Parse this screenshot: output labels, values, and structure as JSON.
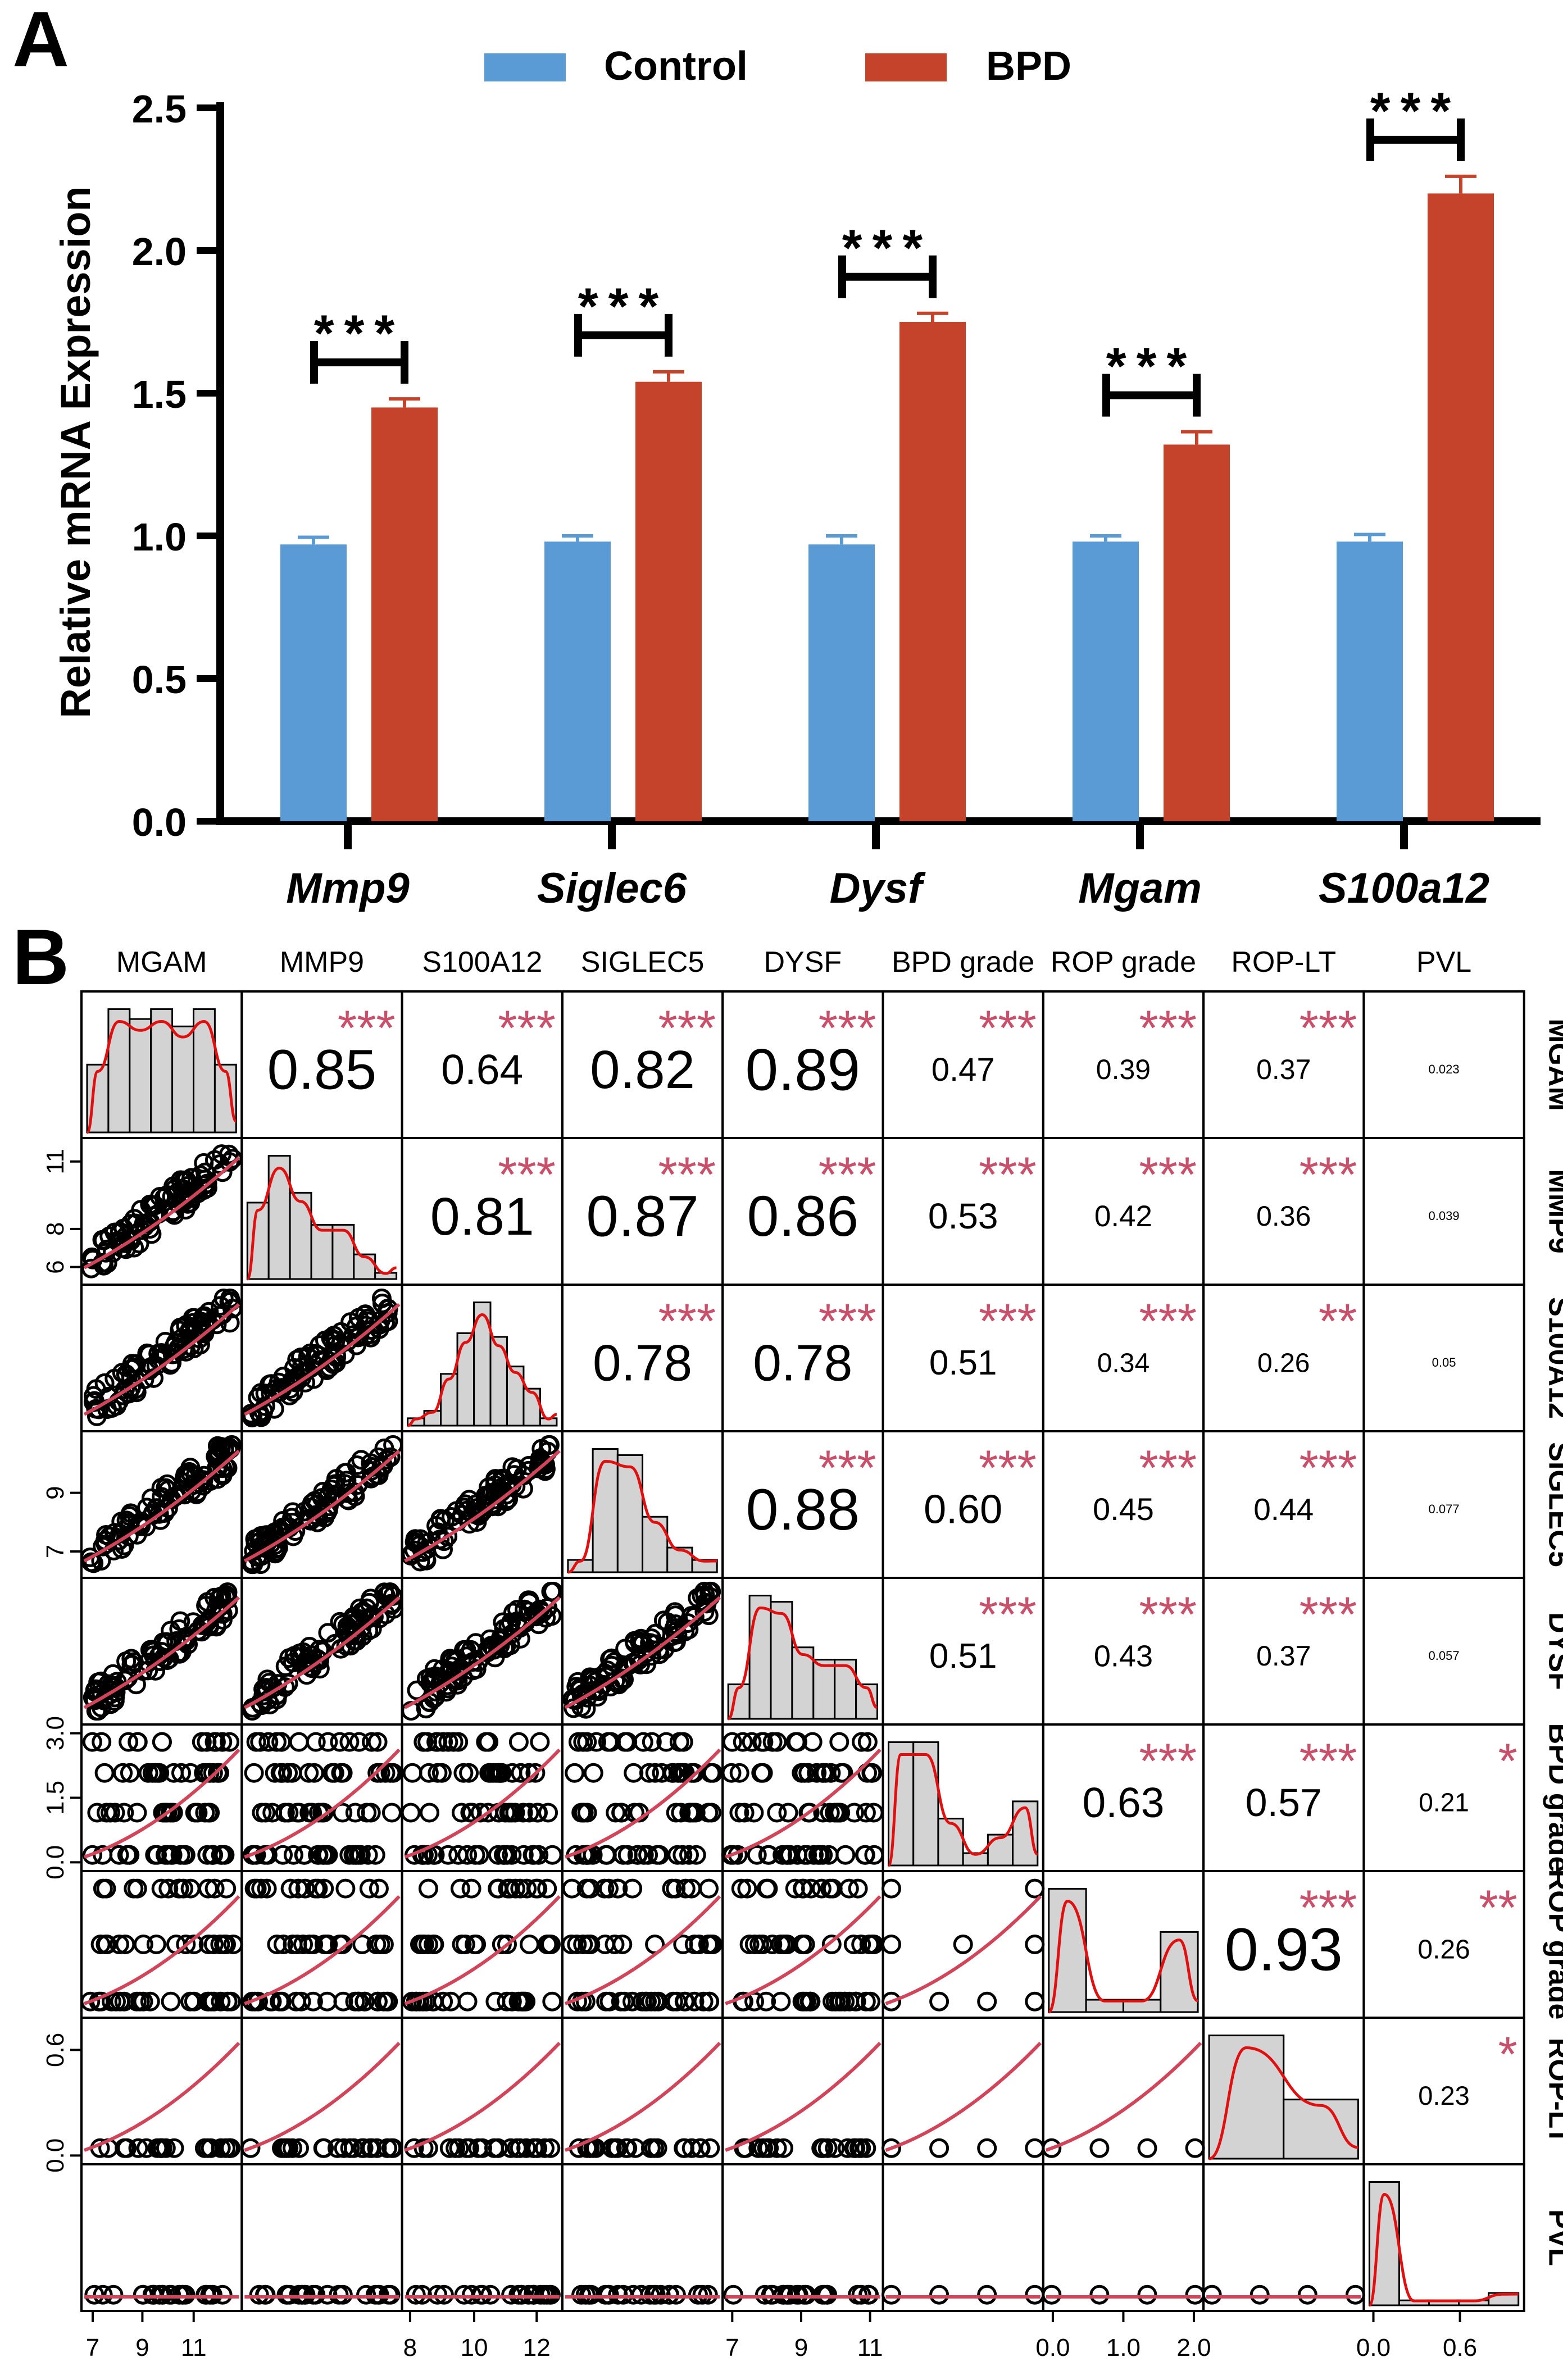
{
  "panel_a": {
    "label": "A",
    "chart_data": {
      "type": "bar",
      "title": "",
      "xlabel": "",
      "ylabel": "Relative mRNA Expression",
      "ylim": [
        0,
        2.5
      ],
      "yticks": [
        "0.0",
        "0.5",
        "1.0",
        "1.5",
        "2.0",
        "2.5"
      ],
      "categories": [
        "Mmp9",
        "Siglec6",
        "Dysf",
        "Mgam",
        "S100a12"
      ],
      "legend_position": "top-center",
      "series": [
        {
          "name": "Control",
          "color": "#5b9bd5",
          "values": [
            0.97,
            0.98,
            0.97,
            0.98,
            0.98
          ],
          "errors": [
            0.025,
            0.02,
            0.03,
            0.02,
            0.025
          ]
        },
        {
          "name": "BPD",
          "color": "#c5432b",
          "values": [
            1.45,
            1.54,
            1.75,
            1.32,
            2.2
          ],
          "errors": [
            0.03,
            0.035,
            0.03,
            0.045,
            0.06
          ]
        }
      ],
      "significance": [
        "***",
        "***",
        "***",
        "***",
        "***"
      ]
    }
  },
  "panel_b": {
    "label": "B",
    "chart_data": {
      "type": "scatter",
      "description": "correlation matrix",
      "variables": [
        "MGAM",
        "MMP9",
        "S100A12",
        "SIGLEC5",
        "DYSF",
        "BPD grade",
        "ROP grade",
        "ROP-LT",
        "PVL"
      ],
      "correlations": [
        {
          "row": 0,
          "col": 1,
          "r": "0.85",
          "stars": "***",
          "size": 1.0
        },
        {
          "row": 0,
          "col": 2,
          "r": "0.64",
          "stars": "***",
          "size": 0.75
        },
        {
          "row": 0,
          "col": 3,
          "r": "0.82",
          "stars": "***",
          "size": 0.96
        },
        {
          "row": 0,
          "col": 4,
          "r": "0.89",
          "stars": "***",
          "size": 1.05
        },
        {
          "row": 0,
          "col": 5,
          "r": "0.47",
          "stars": "***",
          "size": 0.58
        },
        {
          "row": 0,
          "col": 6,
          "r": "0.39",
          "stars": "***",
          "size": 0.5
        },
        {
          "row": 0,
          "col": 7,
          "r": "0.37",
          "stars": "***",
          "size": 0.5
        },
        {
          "row": 0,
          "col": 8,
          "r": "0.023",
          "stars": "",
          "size": 0.22
        },
        {
          "row": 1,
          "col": 2,
          "r": "0.81",
          "stars": "***",
          "size": 0.95
        },
        {
          "row": 1,
          "col": 3,
          "r": "0.87",
          "stars": "***",
          "size": 1.03
        },
        {
          "row": 1,
          "col": 4,
          "r": "0.86",
          "stars": "***",
          "size": 1.02
        },
        {
          "row": 1,
          "col": 5,
          "r": "0.53",
          "stars": "***",
          "size": 0.64
        },
        {
          "row": 1,
          "col": 6,
          "r": "0.42",
          "stars": "***",
          "size": 0.53
        },
        {
          "row": 1,
          "col": 7,
          "r": "0.36",
          "stars": "***",
          "size": 0.5
        },
        {
          "row": 1,
          "col": 8,
          "r": "0.039",
          "stars": "",
          "size": 0.22
        },
        {
          "row": 2,
          "col": 3,
          "r": "0.78",
          "stars": "***",
          "size": 0.91
        },
        {
          "row": 2,
          "col": 4,
          "r": "0.78",
          "stars": "***",
          "size": 0.91
        },
        {
          "row": 2,
          "col": 5,
          "r": "0.51",
          "stars": "***",
          "size": 0.62
        },
        {
          "row": 2,
          "col": 6,
          "r": "0.34",
          "stars": "***",
          "size": 0.48
        },
        {
          "row": 2,
          "col": 7,
          "r": "0.26",
          "stars": "**",
          "size": 0.48
        },
        {
          "row": 2,
          "col": 8,
          "r": "0.05",
          "stars": "",
          "size": 0.22
        },
        {
          "row": 3,
          "col": 4,
          "r": "0.88",
          "stars": "***",
          "size": 1.04
        },
        {
          "row": 3,
          "col": 5,
          "r": "0.60",
          "stars": "***",
          "size": 0.72
        },
        {
          "row": 3,
          "col": 6,
          "r": "0.45",
          "stars": "***",
          "size": 0.56
        },
        {
          "row": 3,
          "col": 7,
          "r": "0.44",
          "stars": "***",
          "size": 0.55
        },
        {
          "row": 3,
          "col": 8,
          "r": "0.077",
          "stars": "",
          "size": 0.22
        },
        {
          "row": 4,
          "col": 5,
          "r": "0.51",
          "stars": "***",
          "size": 0.62
        },
        {
          "row": 4,
          "col": 6,
          "r": "0.43",
          "stars": "***",
          "size": 0.54
        },
        {
          "row": 4,
          "col": 7,
          "r": "0.37",
          "stars": "***",
          "size": 0.5
        },
        {
          "row": 4,
          "col": 8,
          "r": "0.057",
          "stars": "",
          "size": 0.22
        },
        {
          "row": 5,
          "col": 6,
          "r": "0.63",
          "stars": "***",
          "size": 0.75
        },
        {
          "row": 5,
          "col": 7,
          "r": "0.57",
          "stars": "***",
          "size": 0.7
        },
        {
          "row": 5,
          "col": 8,
          "r": "0.21",
          "stars": "*",
          "size": 0.46
        },
        {
          "row": 6,
          "col": 7,
          "r": "0.93",
          "stars": "***",
          "size": 1.08
        },
        {
          "row": 6,
          "col": 8,
          "r": "0.26",
          "stars": "**",
          "size": 0.48
        },
        {
          "row": 7,
          "col": 8,
          "r": "0.23",
          "stars": "*",
          "size": 0.47
        }
      ],
      "histograms": [
        [
          0.55,
          1.0,
          0.92,
          1.0,
          0.86,
          1.0,
          0.55
        ],
        [
          0.62,
          1.0,
          0.7,
          0.44,
          0.44,
          0.2,
          0.05
        ],
        [
          0.06,
          0.12,
          0.42,
          0.75,
          1.0,
          0.72,
          0.48,
          0.3,
          0.06
        ],
        [
          0.1,
          1.0,
          0.95,
          0.45,
          0.2,
          0.1
        ],
        [
          0.28,
          1.0,
          0.95,
          0.58,
          0.48,
          0.48,
          0.28
        ],
        [
          1.0,
          1.0,
          0.38,
          0.1,
          0.25,
          0.52
        ],
        [
          1.0,
          0.1,
          0.1,
          0.65
        ],
        [
          1.0,
          0.48
        ],
        [
          1.0,
          0.04,
          0.04,
          0.04,
          0.1
        ]
      ],
      "left_axis_ticks": [
        {
          "row": 1,
          "ticks": [
            {
              "label": "6",
              "frac": 0.12
            },
            {
              "label": "8",
              "frac": 0.38
            },
            {
              "label": "11",
              "frac": 0.84
            }
          ]
        },
        {
          "row": 3,
          "ticks": [
            {
              "label": "7",
              "frac": 0.18
            },
            {
              "label": "9",
              "frac": 0.58
            }
          ]
        },
        {
          "row": 5,
          "ticks": [
            {
              "label": "0.0",
              "frac": 0.06
            },
            {
              "label": "1.5",
              "frac": 0.5
            },
            {
              "label": "3.0",
              "frac": 0.94
            }
          ]
        },
        {
          "row": 7,
          "ticks": [
            {
              "label": "0.0",
              "frac": 0.06
            },
            {
              "label": "0.6",
              "frac": 0.78
            }
          ]
        }
      ],
      "bottom_axis_ticks": [
        {
          "col": 0,
          "ticks": [
            {
              "label": "7",
              "frac": 0.07
            },
            {
              "label": "9",
              "frac": 0.38
            },
            {
              "label": "11",
              "frac": 0.7
            }
          ]
        },
        {
          "col": 2,
          "ticks": [
            {
              "label": "8",
              "frac": 0.05
            },
            {
              "label": "10",
              "frac": 0.45
            },
            {
              "label": "12",
              "frac": 0.84
            }
          ]
        },
        {
          "col": 4,
          "ticks": [
            {
              "label": "7",
              "frac": 0.06
            },
            {
              "label": "9",
              "frac": 0.49
            },
            {
              "label": "11",
              "frac": 0.92
            }
          ]
        },
        {
          "col": 6,
          "ticks": [
            {
              "label": "0.0",
              "frac": 0.06
            },
            {
              "label": "1.0",
              "frac": 0.5
            },
            {
              "label": "2.0",
              "frac": 0.94
            }
          ]
        },
        {
          "col": 8,
          "ticks": [
            {
              "label": "0.0",
              "frac": 0.06
            },
            {
              "label": "0.6",
              "frac": 0.6
            }
          ]
        }
      ]
    }
  },
  "colors": {
    "control": "#5b9bd5",
    "bpd": "#c5432b",
    "stars": "#c9506a",
    "fit": "#d0455a",
    "density": "#e01010",
    "hist_fill": "#d3d3d3"
  }
}
